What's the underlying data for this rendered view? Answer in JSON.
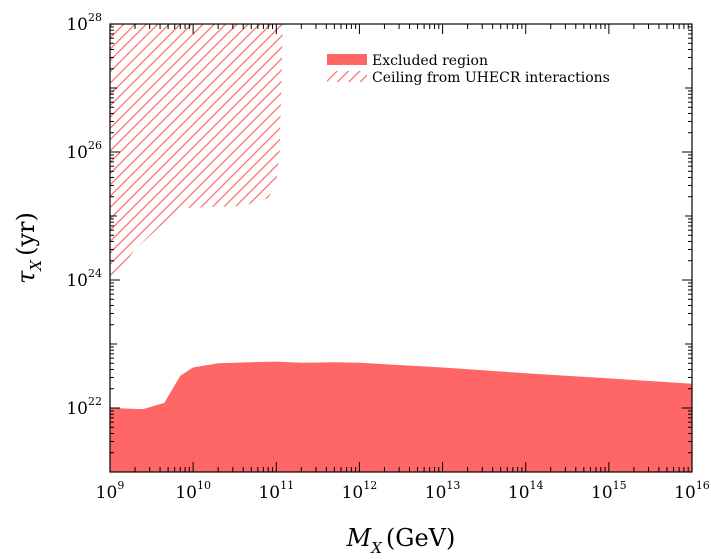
{
  "chart_data": {
    "type": "area",
    "title": "",
    "xlabel": {
      "main": "M",
      "sub": "X",
      "rest": "(GeV)"
    },
    "ylabel": {
      "main": "τ",
      "sub": "X",
      "rest": "(yr)"
    },
    "x_scale": "log",
    "y_scale": "log",
    "xlim": [
      1000000000.0,
      1e+16
    ],
    "ylim": [
      1e+21,
      1e+28
    ],
    "x_ticks": [
      {
        "value": 1000000000.0,
        "base": "10",
        "exp": "9"
      },
      {
        "value": 10000000000.0,
        "base": "10",
        "exp": "10"
      },
      {
        "value": 100000000000.0,
        "base": "10",
        "exp": "11"
      },
      {
        "value": 1000000000000.0,
        "base": "10",
        "exp": "12"
      },
      {
        "value": 10000000000000.0,
        "base": "10",
        "exp": "13"
      },
      {
        "value": 100000000000000.0,
        "base": "10",
        "exp": "14"
      },
      {
        "value": 1000000000000000.0,
        "base": "10",
        "exp": "15"
      },
      {
        "value": 1e+16,
        "base": "10",
        "exp": "16"
      }
    ],
    "y_ticks": [
      {
        "value": 1e+22,
        "base": "10",
        "exp": "22"
      },
      {
        "value": 1e+24,
        "base": "10",
        "exp": "24"
      },
      {
        "value": 1e+26,
        "base": "10",
        "exp": "26"
      },
      {
        "value": 1e+28,
        "base": "10",
        "exp": "28"
      }
    ],
    "grid": false,
    "legend_position": "top-right",
    "series": [
      {
        "name": "Excluded region",
        "style": "filled",
        "color": "#ff6666",
        "points": [
          [
            1000000000.0,
            1e+22
          ],
          [
            2500000000.0,
            9.6e+21
          ],
          [
            4500000000.0,
            1.2e+22
          ],
          [
            7000000000.0,
            3.2e+22
          ],
          [
            10000000000.0,
            4.3e+22
          ],
          [
            20000000000.0,
            5e+22
          ],
          [
            50000000000.0,
            5.2e+22
          ],
          [
            100000000000.0,
            5.3e+22
          ],
          [
            200000000000.0,
            5.1e+22
          ],
          [
            500000000000.0,
            5.2e+22
          ],
          [
            1000000000000.0,
            5.1e+22
          ],
          [
            10000000000000.0,
            4.3e+22
          ],
          [
            100000000000000.0,
            3.5e+22
          ],
          [
            1000000000000000.0,
            2.9e+22
          ],
          [
            1e+16,
            2.4e+22
          ]
        ]
      },
      {
        "name": "Ceiling from UHECR interactions",
        "style": "hatched",
        "color": "#ff6666",
        "points": [
          [
            1000000000.0,
            1e+28
          ],
          [
            120000000000.0,
            1e+28
          ],
          [
            110000000000.0,
            1e+26
          ],
          [
            100000000000.0,
            3.3e+25
          ],
          [
            80000000000.0,
            1.9e+25
          ],
          [
            40000000000.0,
            1.45e+25
          ],
          [
            10000000000.0,
            1.35e+25
          ],
          [
            7000000000.0,
            1.35e+25
          ],
          [
            2000000000.0,
            3e+24
          ],
          [
            1000000000.0,
            9e+23
          ]
        ]
      }
    ]
  }
}
